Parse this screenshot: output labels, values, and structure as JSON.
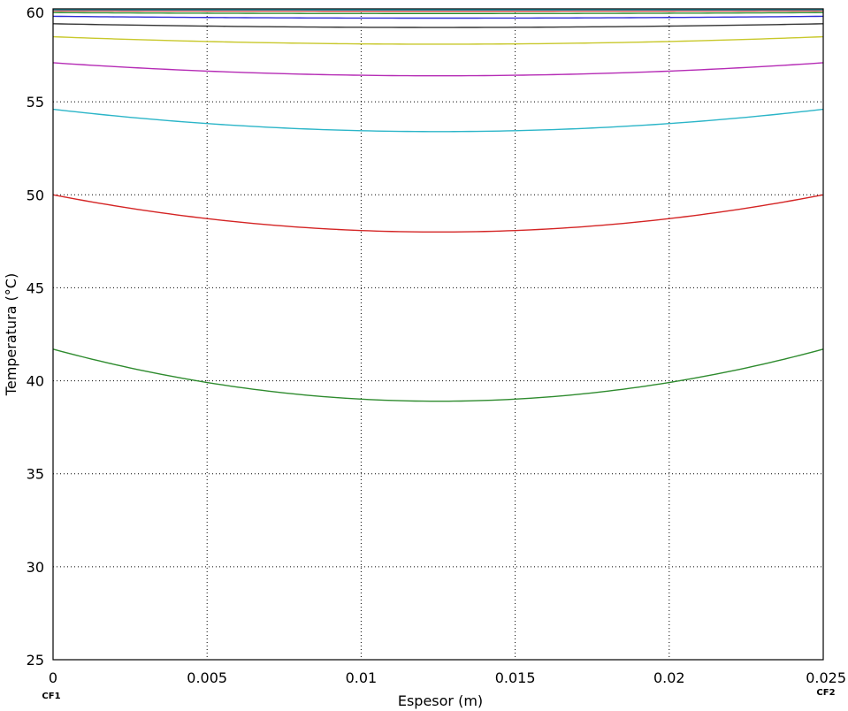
{
  "chart_data": {
    "type": "line",
    "title": "",
    "xlabel": "Espesor (m)",
    "ylabel": "Temperatura (°C)",
    "xlim": [
      0,
      0.025
    ],
    "ylim": [
      25,
      60
    ],
    "xticks": [
      0,
      0.005,
      0.01,
      0.015,
      0.02,
      0.025
    ],
    "yticks": [
      25,
      30,
      35,
      40,
      45,
      50,
      55,
      60
    ],
    "xtick_labels": [
      "0",
      "0.005",
      "0.01",
      "0.015",
      "0.02",
      "0.025"
    ],
    "ytick_labels": [
      "25",
      "30",
      "35",
      "40",
      "45",
      "50",
      "55",
      "60"
    ],
    "boundary_labels": {
      "left": "CF1",
      "right": "CF2"
    },
    "grid": true,
    "x_min_location": 0.0125,
    "series": [
      {
        "color": "#2e8b2e",
        "edge_value": 41.7,
        "min_value": 38.9
      },
      {
        "color": "#d42424",
        "edge_value": 50.0,
        "min_value": 48.0
      },
      {
        "color": "#2bb5c8",
        "edge_value": 54.6,
        "min_value": 53.4
      },
      {
        "color": "#b52bb5",
        "edge_value": 57.1,
        "min_value": 56.4
      },
      {
        "color": "#c8c82b",
        "edge_value": 58.5,
        "min_value": 58.1
      },
      {
        "color": "#333333",
        "edge_value": 59.2,
        "min_value": 59.0
      },
      {
        "color": "#2b2bd4",
        "edge_value": 59.6,
        "min_value": 59.5
      },
      {
        "color": "#2e8b2e",
        "edge_value": 59.8,
        "min_value": 59.75
      },
      {
        "color": "#d42424",
        "edge_value": 59.9,
        "min_value": 59.88
      },
      {
        "color": "#2bb5c8",
        "edge_value": 59.95,
        "min_value": 59.94
      }
    ]
  }
}
